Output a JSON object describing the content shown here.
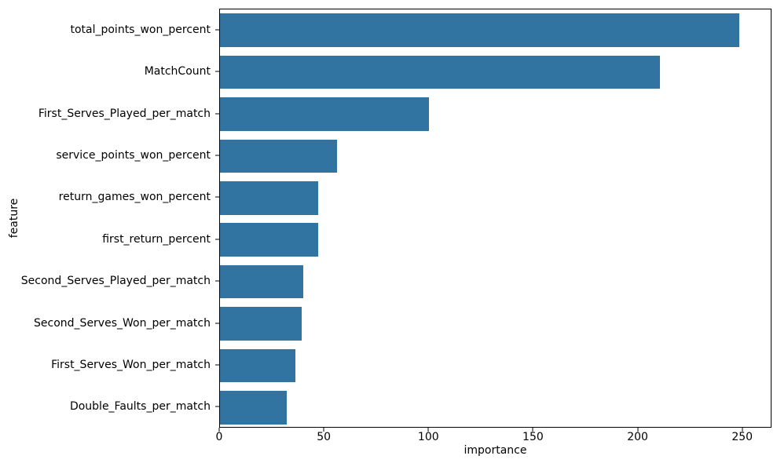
{
  "chart_data": {
    "type": "bar",
    "orientation": "horizontal",
    "title": "",
    "xlabel": "importance",
    "ylabel": "feature",
    "categories": [
      "total_points_won_percent",
      "MatchCount",
      "First_Serves_Played_per_match",
      "service_points_won_percent",
      "return_games_won_percent",
      "first_return_percent",
      "Second_Serves_Played_per_match",
      "Second_Serves_Won_per_match",
      "First_Serves_Won_per_match",
      "Double_Faults_per_match"
    ],
    "values": [
      249,
      211,
      100,
      56,
      47,
      47,
      40,
      39,
      36,
      32
    ],
    "xlim": [
      0,
      264
    ],
    "xticks": [
      0,
      50,
      100,
      150,
      200,
      250
    ],
    "bar_color": "#3274a1",
    "grid": false,
    "legend": "none",
    "background_color": "#ffffff"
  }
}
